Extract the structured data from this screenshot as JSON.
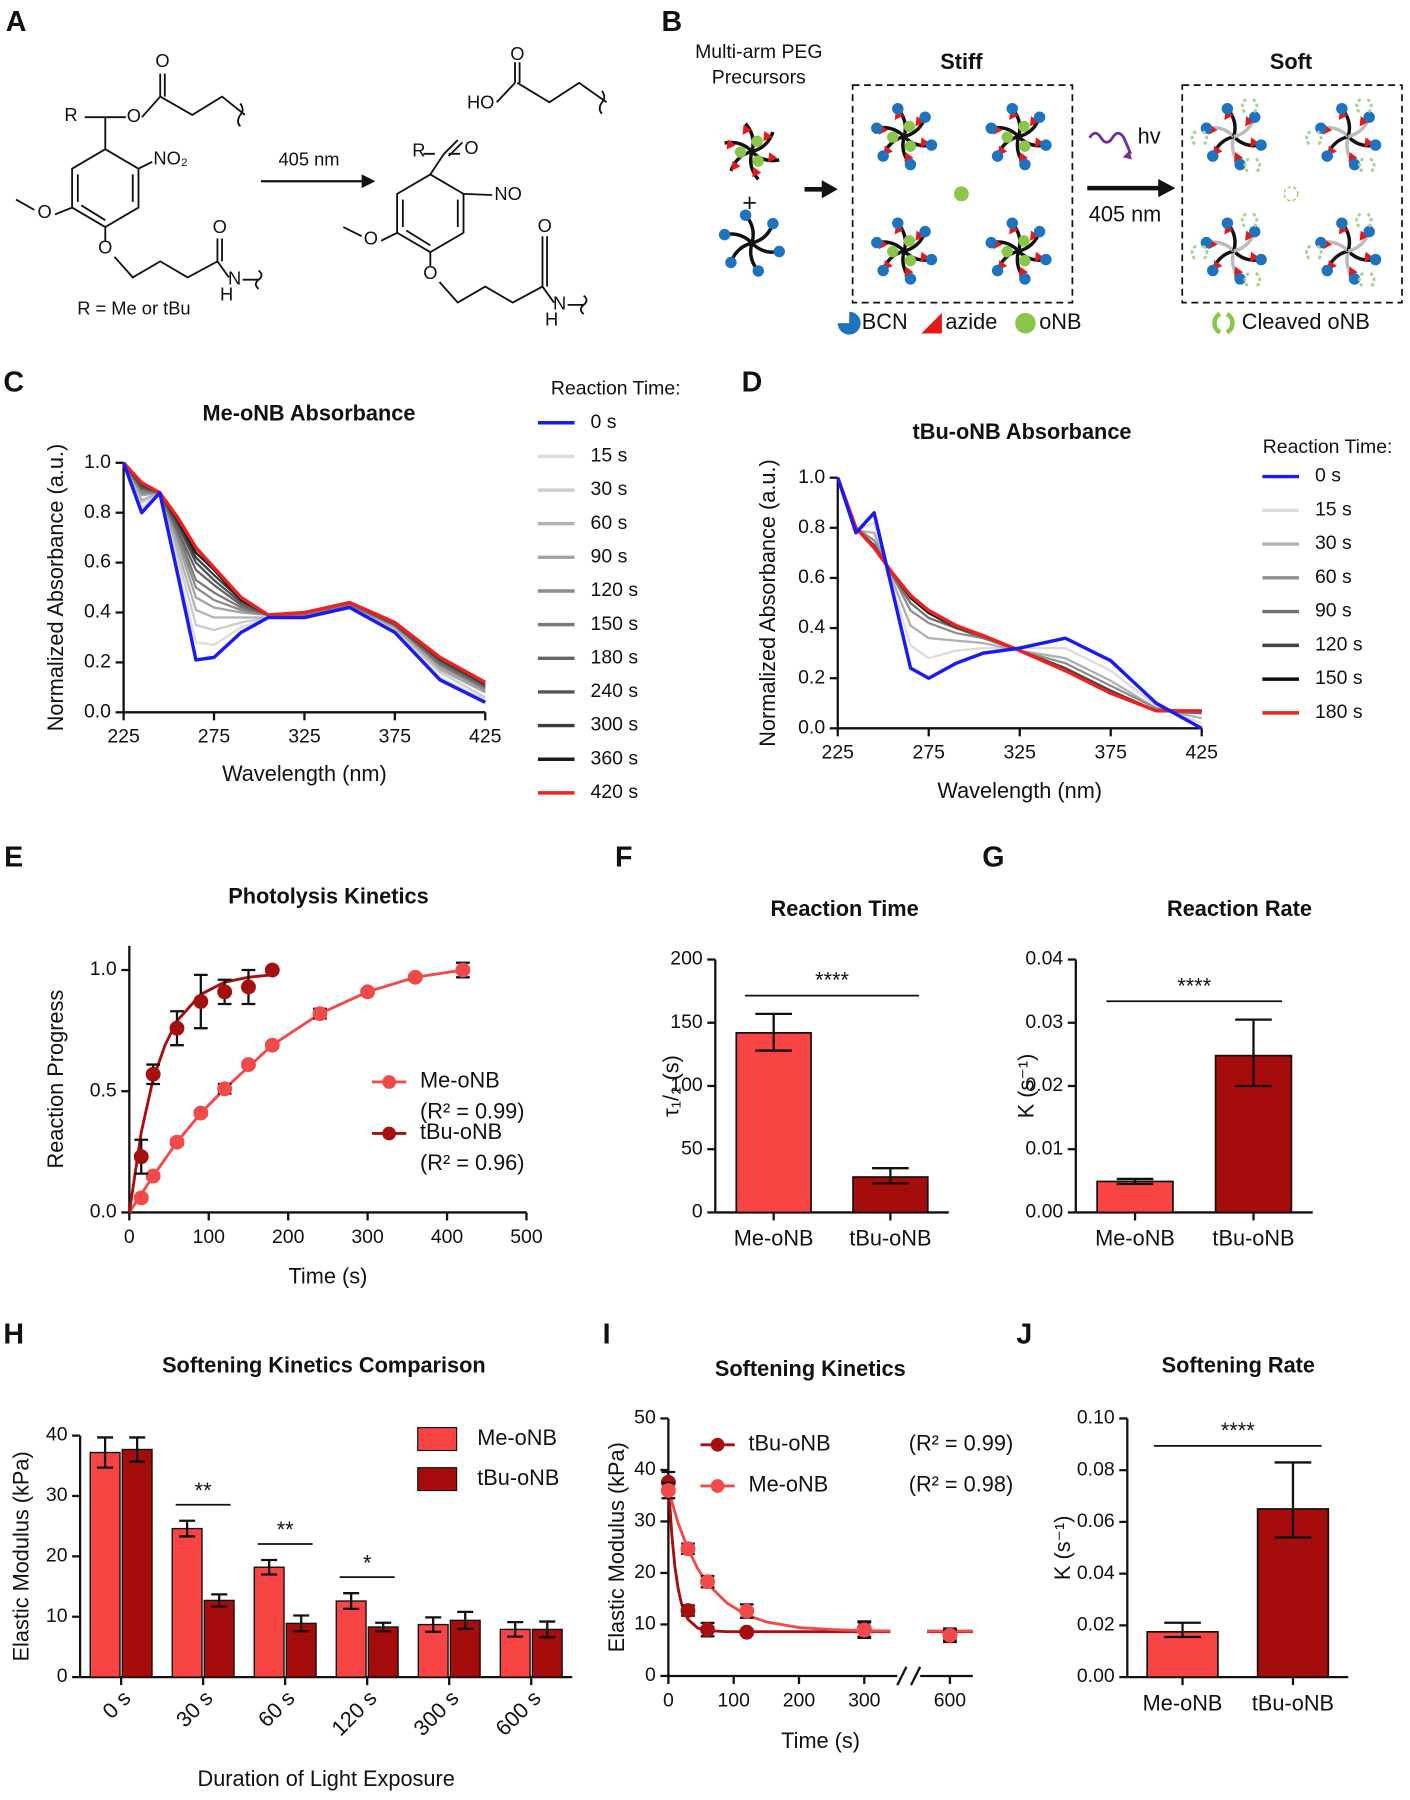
{
  "diagrams": {
    "A": {
      "panel": "A",
      "arrow_label": "405 nm",
      "r_note": "R = Me or tBu",
      "left_atoms": [
        "R",
        "O",
        "O",
        "NO₂",
        "O",
        "O",
        "O",
        "N",
        "H"
      ],
      "right_atoms": [
        "HO",
        "O",
        "R",
        "O",
        "NO",
        "O",
        "O",
        "O",
        "N",
        "H"
      ]
    },
    "B": {
      "panel": "B",
      "precursors": [
        "Multi-arm PEG",
        "Precursors"
      ],
      "plus": "+",
      "stiff": "Stiff",
      "soft": "Soft",
      "hv": "hv",
      "arrow_label": "405 nm",
      "legend": [
        "BCN",
        "azide",
        "oNB",
        "Cleaved oNB"
      ]
    }
  },
  "chart_data": [
    {
      "panel": "C",
      "type": "line",
      "title": "Me-oNB Absorbance",
      "xlabel": "Wavelength (nm)",
      "ylabel": "Normalized Absorbance (a.u.)",
      "legend_title": "Reaction Time:",
      "x": [
        225,
        235,
        245,
        255,
        265,
        275,
        290,
        305,
        325,
        350,
        375,
        400,
        425
      ],
      "xlim": [
        225,
        425
      ],
      "xticks": [
        225,
        275,
        325,
        375,
        425
      ],
      "ylim": [
        0,
        1
      ],
      "yticks": [
        {
          "value": 0,
          "label": "0.0"
        },
        0.2,
        0.4,
        0.6,
        0.8,
        {
          "value": 1,
          "label": "1.0"
        }
      ],
      "series": [
        {
          "name": "0 s",
          "color": "#1b1bf0",
          "values": [
            1.0,
            0.8,
            0.88,
            0.55,
            0.21,
            0.22,
            0.32,
            0.38,
            0.38,
            0.42,
            0.32,
            0.13,
            0.04
          ]
        },
        {
          "name": "15 s",
          "color": "#dcdcdc",
          "values": [
            1.0,
            0.82,
            0.88,
            0.58,
            0.28,
            0.27,
            0.34,
            0.38,
            0.38,
            0.42,
            0.33,
            0.14,
            0.05
          ]
        },
        {
          "name": "30 s",
          "color": "#cccccc",
          "values": [
            1.0,
            0.84,
            0.88,
            0.62,
            0.35,
            0.33,
            0.36,
            0.38,
            0.39,
            0.43,
            0.33,
            0.16,
            0.06
          ]
        },
        {
          "name": "60 s",
          "color": "#b3b3b3",
          "values": [
            1.0,
            0.85,
            0.88,
            0.65,
            0.41,
            0.38,
            0.38,
            0.38,
            0.39,
            0.43,
            0.34,
            0.17,
            0.08
          ]
        },
        {
          "name": "90 s",
          "color": "#a3a3a3",
          "values": [
            1.0,
            0.87,
            0.88,
            0.68,
            0.46,
            0.42,
            0.4,
            0.39,
            0.39,
            0.43,
            0.34,
            0.18,
            0.08
          ]
        },
        {
          "name": "120 s",
          "color": "#8c8c8c",
          "values": [
            1.0,
            0.88,
            0.88,
            0.7,
            0.5,
            0.45,
            0.41,
            0.39,
            0.39,
            0.43,
            0.35,
            0.19,
            0.09
          ]
        },
        {
          "name": "150 s",
          "color": "#7a7a7a",
          "values": [
            1.0,
            0.89,
            0.88,
            0.72,
            0.53,
            0.48,
            0.42,
            0.39,
            0.39,
            0.43,
            0.35,
            0.19,
            0.1
          ]
        },
        {
          "name": "180 s",
          "color": "#666666",
          "values": [
            1.0,
            0.9,
            0.88,
            0.73,
            0.57,
            0.51,
            0.43,
            0.39,
            0.4,
            0.44,
            0.35,
            0.2,
            0.1
          ]
        },
        {
          "name": "240 s",
          "color": "#555555",
          "values": [
            1.0,
            0.9,
            0.88,
            0.75,
            0.6,
            0.53,
            0.44,
            0.39,
            0.4,
            0.44,
            0.35,
            0.21,
            0.11
          ]
        },
        {
          "name": "300 s",
          "color": "#3c3c3c",
          "values": [
            1.0,
            0.91,
            0.88,
            0.76,
            0.62,
            0.55,
            0.45,
            0.39,
            0.4,
            0.44,
            0.36,
            0.21,
            0.11
          ]
        },
        {
          "name": "360 s",
          "color": "#1c1c1c",
          "values": [
            1.0,
            0.92,
            0.88,
            0.77,
            0.64,
            0.57,
            0.45,
            0.39,
            0.4,
            0.44,
            0.36,
            0.22,
            0.12
          ]
        },
        {
          "name": "420 s",
          "color": "#ee2020",
          "values": [
            1.0,
            0.92,
            0.88,
            0.78,
            0.66,
            0.58,
            0.46,
            0.39,
            0.4,
            0.44,
            0.36,
            0.22,
            0.12
          ]
        }
      ]
    },
    {
      "panel": "D",
      "type": "line",
      "title": "tBu-oNB Absorbance",
      "xlabel": "Wavelength (nm)",
      "ylabel": "Normalized Absorbance (a.u.)",
      "legend_title": "Reaction Time:",
      "x": [
        225,
        235,
        245,
        255,
        265,
        275,
        290,
        305,
        325,
        350,
        375,
        400,
        425
      ],
      "xlim": [
        225,
        425
      ],
      "xticks": [
        225,
        275,
        325,
        375,
        425
      ],
      "ylim": [
        0,
        1
      ],
      "yticks": [
        {
          "value": 0,
          "label": "0.0"
        },
        0.2,
        0.4,
        0.6,
        0.8,
        {
          "value": 1,
          "label": "1.0"
        }
      ],
      "series": [
        {
          "name": "0 s",
          "color": "#1b1bf0",
          "values": [
            1.0,
            0.78,
            0.86,
            0.55,
            0.24,
            0.2,
            0.26,
            0.3,
            0.32,
            0.36,
            0.27,
            0.1,
            0.0
          ]
        },
        {
          "name": "15 s",
          "color": "#dcdcdc",
          "values": [
            1.0,
            0.79,
            0.82,
            0.57,
            0.33,
            0.28,
            0.31,
            0.32,
            0.32,
            0.32,
            0.23,
            0.09,
            0.02
          ]
        },
        {
          "name": "30 s",
          "color": "#b0b0b0",
          "values": [
            1.0,
            0.79,
            0.78,
            0.59,
            0.41,
            0.36,
            0.35,
            0.34,
            0.31,
            0.28,
            0.19,
            0.08,
            0.04
          ]
        },
        {
          "name": "60 s",
          "color": "#8f8f8f",
          "values": [
            1.0,
            0.8,
            0.75,
            0.61,
            0.47,
            0.42,
            0.38,
            0.36,
            0.31,
            0.26,
            0.17,
            0.08,
            0.06
          ]
        },
        {
          "name": "90 s",
          "color": "#707070",
          "values": [
            1.0,
            0.8,
            0.73,
            0.61,
            0.5,
            0.44,
            0.4,
            0.36,
            0.31,
            0.24,
            0.15,
            0.07,
            0.06
          ]
        },
        {
          "name": "120 s",
          "color": "#444444",
          "values": [
            1.0,
            0.8,
            0.73,
            0.62,
            0.52,
            0.46,
            0.4,
            0.37,
            0.31,
            0.24,
            0.15,
            0.07,
            0.07
          ]
        },
        {
          "name": "150 s",
          "color": "#111111",
          "values": [
            1.0,
            0.8,
            0.72,
            0.62,
            0.52,
            0.46,
            0.41,
            0.37,
            0.31,
            0.23,
            0.14,
            0.07,
            0.07
          ]
        },
        {
          "name": "180 s",
          "color": "#ee2020",
          "values": [
            1.0,
            0.8,
            0.72,
            0.62,
            0.53,
            0.47,
            0.41,
            0.37,
            0.31,
            0.23,
            0.14,
            0.07,
            0.07
          ]
        }
      ]
    },
    {
      "panel": "E",
      "type": "scatter",
      "title": "Photolysis Kinetics",
      "xlabel": "Time (s)",
      "ylabel": "Reaction Progress",
      "xlim": [
        0,
        500
      ],
      "xticks": [
        0,
        100,
        200,
        300,
        400,
        500
      ],
      "ylim": [
        0,
        1.1
      ],
      "yticks": [
        {
          "value": 0,
          "label": "0.0"
        },
        0.5,
        {
          "value": 1,
          "label": "1.0"
        }
      ],
      "series": [
        {
          "name": "Me-oNB",
          "r2_label": "(R² = 0.99)",
          "color": "#f24a4a",
          "x": [
            15,
            30,
            60,
            90,
            120,
            150,
            180,
            240,
            300,
            360,
            420
          ],
          "values": [
            0.06,
            0.15,
            0.29,
            0.41,
            0.51,
            0.61,
            0.69,
            0.82,
            0.91,
            0.97,
            1.0
          ],
          "errors": [
            0.01,
            0.01,
            0.01,
            0.01,
            0.02,
            0.01,
            0.01,
            0.02,
            0.01,
            0.01,
            0.03
          ],
          "fit": {
            "x": [
              0,
              30,
              60,
              90,
              120,
              180,
              240,
              300,
              360,
              420
            ],
            "values": [
              0,
              0.15,
              0.29,
              0.41,
              0.51,
              0.69,
              0.82,
              0.91,
              0.97,
              1.0
            ]
          }
        },
        {
          "name": "tBu-oNB",
          "r2_label": "(R² = 0.96)",
          "color": "#a50f0f",
          "x": [
            15,
            30,
            60,
            90,
            120,
            150,
            180
          ],
          "values": [
            0.23,
            0.57,
            0.76,
            0.87,
            0.91,
            0.93,
            1.0
          ],
          "errors": [
            0.07,
            0.04,
            0.07,
            0.11,
            0.05,
            0.07,
            0.0
          ],
          "fit": {
            "x": [
              0,
              15,
              30,
              45,
              60,
              90,
              120,
              150,
              180
            ],
            "values": [
              0,
              0.33,
              0.55,
              0.69,
              0.79,
              0.9,
              0.95,
              0.97,
              0.98
            ]
          }
        }
      ]
    },
    {
      "panel": "F",
      "type": "bar",
      "title": "Reaction Time",
      "ylabel": "τ₁/₂ (s)",
      "categories": [
        "Me-oNB",
        "tBu-oNB"
      ],
      "values": [
        142,
        28
      ],
      "error_low": [
        128,
        23
      ],
      "error_high": [
        157,
        35
      ],
      "colors": [
        "#f94444",
        "#a50d0d"
      ],
      "significance": "****",
      "ylim": [
        0,
        200
      ],
      "yticks": [
        0,
        50,
        100,
        150,
        200
      ]
    },
    {
      "panel": "G",
      "type": "bar",
      "title": "Reaction Rate",
      "ylabel": "K (s⁻¹)",
      "categories": [
        "Me-oNB",
        "tBu-oNB"
      ],
      "values": [
        0.0049,
        0.0248
      ],
      "error_low": [
        0.0045,
        0.02
      ],
      "error_high": [
        0.0053,
        0.0305
      ],
      "colors": [
        "#f94444",
        "#a50d0d"
      ],
      "significance": "****",
      "ylim": [
        0,
        0.04
      ],
      "yticks": [
        {
          "value": 0,
          "label": "0.00"
        },
        0.01,
        0.02,
        0.03,
        0.04
      ]
    },
    {
      "panel": "H",
      "type": "grouped_bar",
      "title": "Softening Kinetics Comparison",
      "xlabel": "Duration of Light Exposure",
      "ylabel": "Elastic Modulus (kPa)",
      "categories": [
        "0 s",
        "30 s",
        "60 s",
        "120 s",
        "300 s",
        "600 s"
      ],
      "significance": [
        null,
        "**",
        "**",
        "*",
        null,
        null
      ],
      "ylim": [
        0,
        40
      ],
      "yticks": [
        0,
        10,
        20,
        30,
        40
      ],
      "series": [
        {
          "name": "Me-oNB",
          "color": "#f94444",
          "values": [
            37.2,
            24.6,
            18.2,
            12.6,
            8.7,
            7.9
          ],
          "error_low": [
            34.7,
            23.3,
            17.0,
            11.3,
            7.5,
            6.7
          ],
          "error_high": [
            39.7,
            25.9,
            19.4,
            13.9,
            9.9,
            9.1
          ]
        },
        {
          "name": "tBu-oNB",
          "color": "#a50d0d",
          "values": [
            37.7,
            12.7,
            8.9,
            8.3,
            9.4,
            7.9
          ],
          "error_low": [
            35.7,
            11.7,
            7.6,
            7.6,
            8.0,
            6.6
          ],
          "error_high": [
            39.7,
            13.7,
            10.2,
            9.0,
            10.8,
            9.2
          ]
        }
      ]
    },
    {
      "panel": "I",
      "type": "scatter",
      "title": "Softening Kinetics",
      "xlabel": "Time (s)",
      "ylabel": "Elastic Modulus (kPa)",
      "xlim": [
        0,
        620
      ],
      "x_break": [
        340,
        580
      ],
      "xticks": [
        0,
        100,
        200,
        300,
        600
      ],
      "ylim": [
        0,
        50
      ],
      "yticks": [
        0,
        10,
        20,
        30,
        40,
        50
      ],
      "series": [
        {
          "name": "tBu-oNB",
          "r2_label": "(R² = 0.99)",
          "color": "#a50f0f",
          "x": [
            0,
            30,
            60,
            120,
            300,
            600
          ],
          "values": [
            37.6,
            12.7,
            9.0,
            8.5,
            9.1,
            7.9
          ],
          "errors": [
            2.0,
            1.0,
            1.3,
            0.5,
            1.5,
            1.3
          ],
          "fit": {
            "x": [
              0,
              5,
              10,
              15,
              20,
              30,
              45,
              60,
              90,
              120,
              200,
              300,
              340,
              460,
              580,
              620
            ],
            "values": [
              37.6,
              27.7,
              21.2,
              16.9,
              14.1,
              11.0,
              9.3,
              8.8,
              8.6,
              8.6,
              8.6,
              8.6,
              8.6,
              null,
              8.6,
              8.6
            ]
          }
        },
        {
          "name": "Me-oNB",
          "r2_label": "(R² = 0.98)",
          "color": "#f24a4a",
          "x": [
            0,
            30,
            60,
            120,
            300,
            600
          ],
          "values": [
            36.0,
            24.7,
            18.3,
            12.6,
            8.9,
            7.9
          ],
          "errors": [
            1.5,
            1.0,
            1.1,
            1.3,
            1.5,
            1.0
          ],
          "fit": {
            "x": [
              0,
              15,
              30,
              45,
              60,
              90,
              120,
              150,
              200,
              250,
              300,
              340,
              460,
              580,
              620
            ],
            "values": [
              36.2,
              29.6,
              24.7,
              20.8,
              17.9,
              14.1,
              11.8,
              10.5,
              9.4,
              9.0,
              8.8,
              8.7,
              null,
              8.7,
              8.7
            ]
          }
        }
      ]
    },
    {
      "panel": "J",
      "type": "bar",
      "title": "Softening Rate",
      "ylabel": "K (s⁻¹)",
      "categories": [
        "Me-oNB",
        "tBu-oNB"
      ],
      "values": [
        0.0175,
        0.065
      ],
      "error_low": [
        0.0155,
        0.054
      ],
      "error_high": [
        0.021,
        0.083
      ],
      "colors": [
        "#f94444",
        "#a50d0d"
      ],
      "significance": "****",
      "ylim": [
        0,
        0.1
      ],
      "yticks": [
        {
          "value": 0,
          "label": "0.00"
        },
        0.02,
        0.04,
        0.06,
        0.08,
        {
          "value": 0.1,
          "label": "0.10"
        }
      ]
    }
  ]
}
